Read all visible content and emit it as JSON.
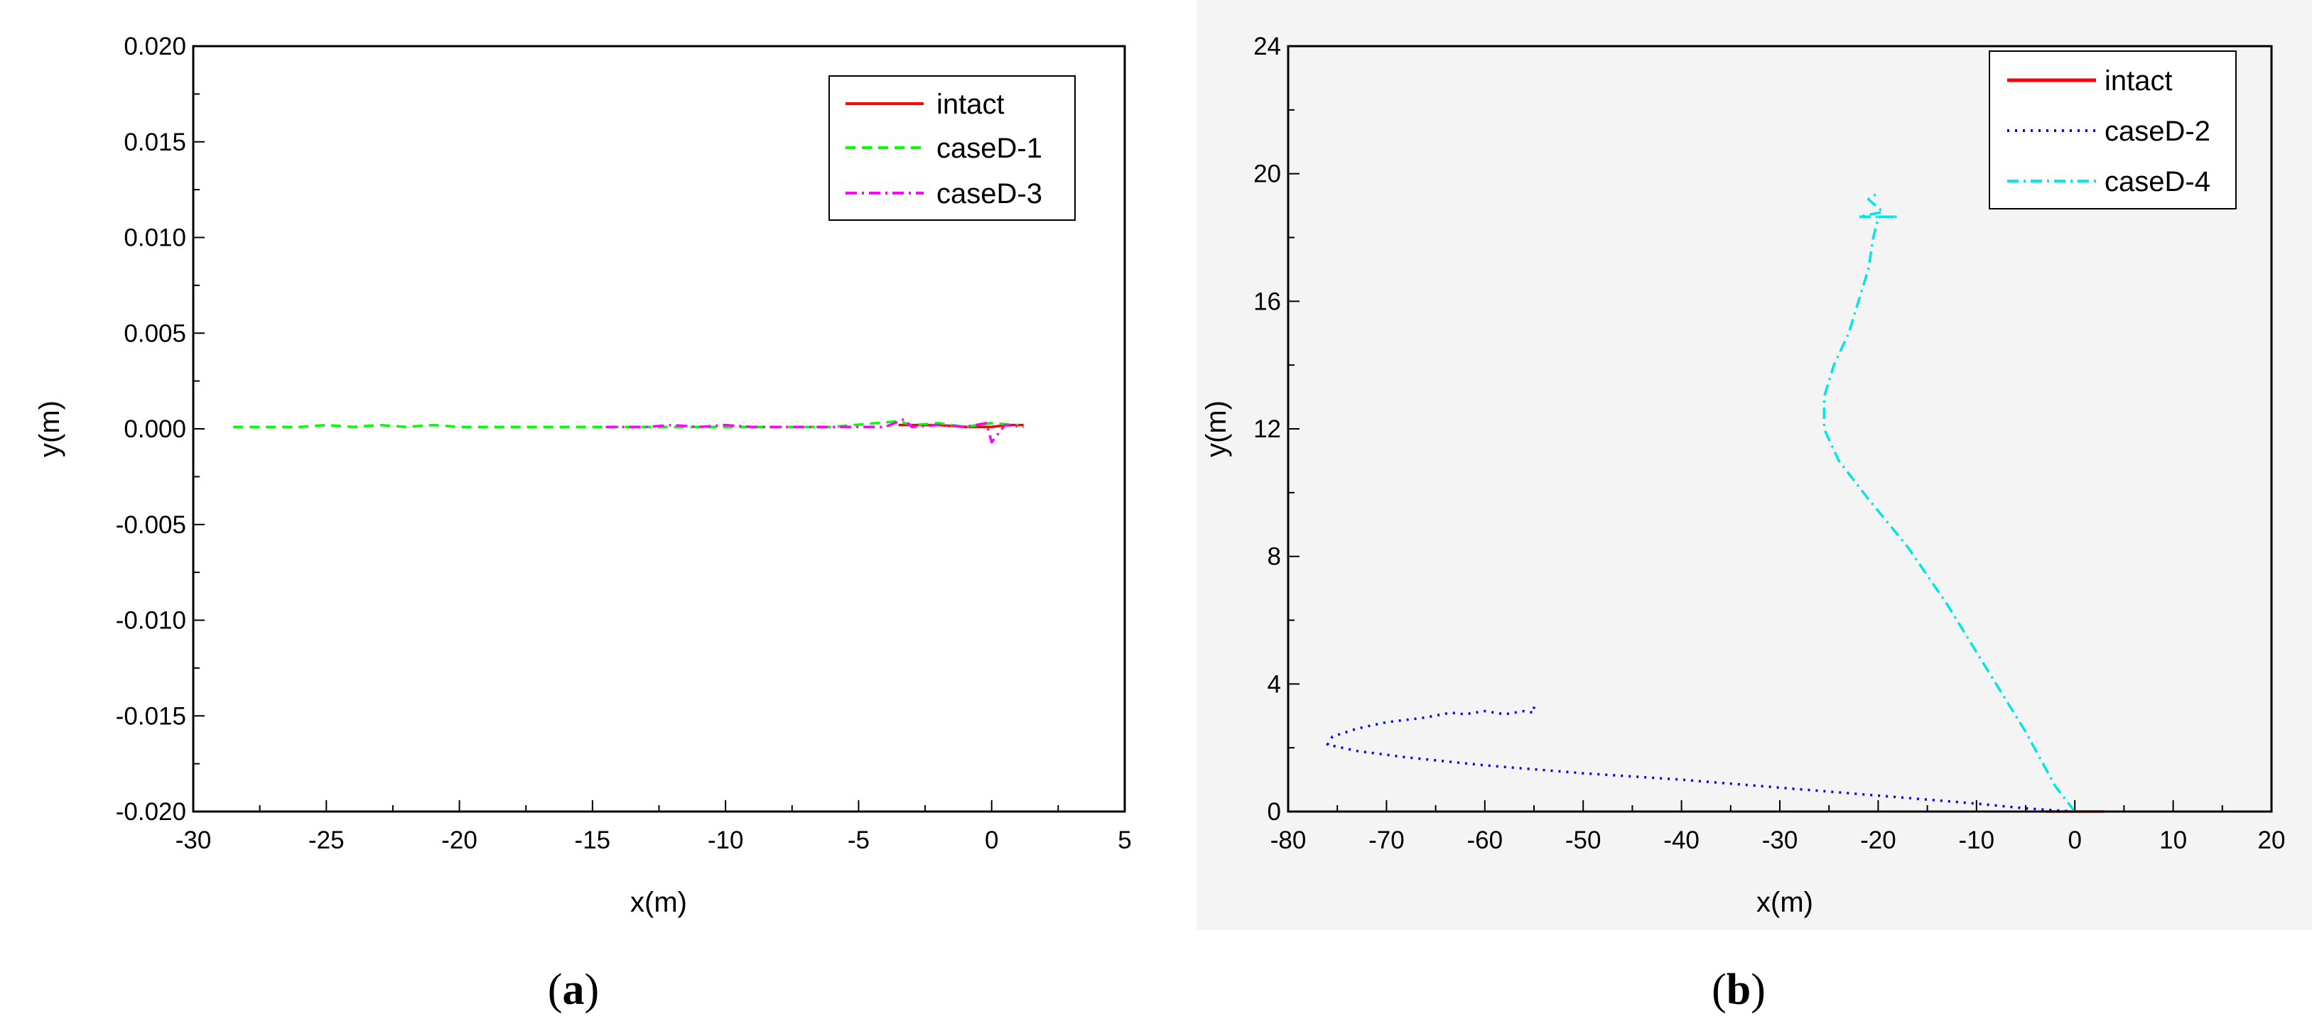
{
  "chart_data": [
    {
      "type": "line",
      "panel": "a",
      "caption_open": "(",
      "caption_letter": "a",
      "caption_close": ")",
      "title": "",
      "xlabel": "x(m)",
      "ylabel": "y(m)",
      "xlim": [
        -30,
        5
      ],
      "ylim": [
        -0.02,
        0.02
      ],
      "x_ticks": [
        -30,
        -25,
        -20,
        -15,
        -10,
        -5,
        0,
        5
      ],
      "x_tick_labels": [
        "-30",
        "-25",
        "-20",
        "-15",
        "-10",
        "-5",
        "0",
        "5"
      ],
      "y_ticks": [
        -0.02,
        -0.015,
        -0.01,
        -0.005,
        0,
        0.005,
        0.01,
        0.015,
        0.02
      ],
      "y_tick_labels": [
        "-0.020",
        "-0.015",
        "-0.010",
        "-0.005",
        "0.000",
        "0.005",
        "0.010",
        "0.015",
        "0.020"
      ],
      "grid": false,
      "legend_position": "top-right",
      "series": [
        {
          "name": "intact",
          "color": "#ff0000",
          "dash": "solid",
          "x": [
            -3.5,
            -2.0,
            -1.0,
            0,
            0.6,
            1.2
          ],
          "y": [
            0.0002,
            0.0002,
            0.0001,
            0.0001,
            0.0002,
            0.0002
          ]
        },
        {
          "name": "caseD-1",
          "color": "#00ff00",
          "dash": "dashed",
          "x": [
            -28.5,
            -26,
            -25,
            -24,
            -23,
            -22,
            -21,
            -20,
            -19,
            -17,
            -15,
            -12,
            -9,
            -6,
            -3.5,
            -3.0,
            -2.0,
            -1.0,
            0,
            1.0
          ],
          "y": [
            0.0001,
            0.0001,
            0.0002,
            0.0001,
            0.0002,
            0.0001,
            0.0002,
            0.0001,
            0.0001,
            0.0001,
            0.0001,
            0.0001,
            0.0001,
            0.0001,
            0.0004,
            0.0002,
            0.0003,
            0.0001,
            0.0003,
            0.0002
          ]
        },
        {
          "name": "caseD-3",
          "color": "#ff00ff",
          "dash": "dashdot",
          "x": [
            -14.5,
            -13,
            -12,
            -11,
            -10,
            -9,
            -8,
            -7,
            -6,
            -5,
            -4,
            -3.3,
            -3.0,
            -2.0,
            -1.0,
            -0.2,
            0,
            0.5,
            1.2
          ],
          "y": [
            0.0001,
            0.0001,
            0.0002,
            0.0001,
            0.0002,
            0.0001,
            0.0001,
            0.0001,
            0.0001,
            0.0001,
            0.0001,
            0.0005,
            0.0001,
            0.0002,
            0.0001,
            0.0003,
            -0.0007,
            0.0002,
            0.0001
          ]
        }
      ]
    },
    {
      "type": "line",
      "panel": "b",
      "caption_open": "(",
      "caption_letter": "b",
      "caption_close": ")",
      "title": "",
      "xlabel": "x(m)",
      "ylabel": "y(m)",
      "xlim": [
        -80,
        20
      ],
      "ylim": [
        0,
        24
      ],
      "x_ticks": [
        -80,
        -70,
        -60,
        -50,
        -40,
        -30,
        -20,
        -10,
        0,
        10,
        20
      ],
      "x_tick_labels": [
        "-80",
        "-70",
        "-60",
        "-50",
        "-40",
        "-30",
        "-20",
        "-10",
        "0",
        "10",
        "20"
      ],
      "y_ticks": [
        0,
        4,
        8,
        12,
        16,
        20,
        24
      ],
      "y_tick_labels": [
        "0",
        "4",
        "8",
        "12",
        "16",
        "20",
        "24"
      ],
      "grid": false,
      "legend_position": "top-right",
      "series": [
        {
          "name": "intact",
          "color": "#ff0000",
          "dash": "solid",
          "x": [
            -3.0,
            -1.5,
            0,
            1.5,
            3.0
          ],
          "y": [
            0.0,
            0.0,
            0.0,
            0.0,
            0.0
          ]
        },
        {
          "name": "caseD-2",
          "color": "#0000ff",
          "dash": "dotted",
          "x": [
            0,
            -5,
            -10,
            -20,
            -30,
            -40,
            -50,
            -60,
            -68,
            -73,
            -76,
            -75.5,
            -73,
            -70,
            -66,
            -63.5,
            -62,
            -60,
            -58,
            -56,
            -55,
            -55
          ],
          "y": [
            0.0,
            0.1,
            0.25,
            0.5,
            0.75,
            1.0,
            1.2,
            1.45,
            1.7,
            1.9,
            2.1,
            2.35,
            2.6,
            2.8,
            2.95,
            3.1,
            3.05,
            3.15,
            3.05,
            3.15,
            3.1,
            3.3
          ]
        },
        {
          "name": "caseD-4",
          "color": "#00e5e5",
          "dash": "dashdot",
          "x": [
            0,
            -2,
            -5,
            -9,
            -13,
            -17,
            -21,
            -24,
            -25.5,
            -25.5,
            -24.5,
            -23,
            -22,
            -21,
            -20.5,
            -20,
            -20,
            -18,
            -20,
            -22,
            -19.5,
            -21,
            -20
          ],
          "y": [
            0.0,
            0.8,
            2.5,
            4.5,
            6.5,
            8.3,
            9.8,
            11.0,
            12.0,
            13.0,
            14.0,
            15.0,
            16.0,
            17.0,
            18.0,
            18.6,
            18.65,
            18.65,
            18.65,
            18.65,
            18.8,
            19.2,
            19.4
          ]
        }
      ]
    }
  ]
}
